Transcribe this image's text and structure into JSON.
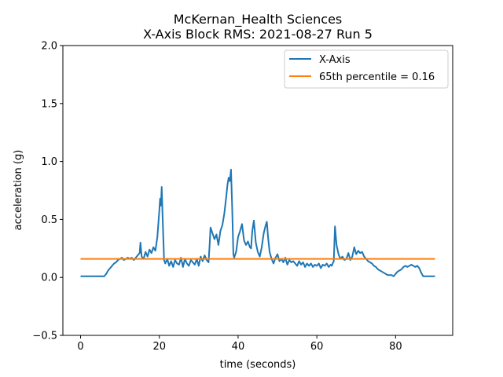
{
  "chart_data": {
    "type": "line",
    "title_line1": "McKernan_Health Sciences",
    "title_line2": "X-Axis Block RMS: 2021-08-27 Run 5",
    "xlabel": "time (seconds)",
    "ylabel": "acceleration (g)",
    "xlim": [
      -4.5,
      94.5
    ],
    "ylim": [
      -0.5,
      2.0
    ],
    "x_ticks": [
      0,
      20,
      40,
      60,
      80
    ],
    "y_ticks": [
      -0.5,
      0.0,
      0.5,
      1.0,
      1.5,
      2.0
    ],
    "x_tick_labels": [
      "0",
      "20",
      "40",
      "60",
      "80"
    ],
    "y_tick_labels": [
      "−0.5",
      "0.0",
      "0.5",
      "1.0",
      "1.5",
      "2.0"
    ],
    "legend_position": "top-right",
    "grid": false,
    "series": [
      {
        "name": "X-Axis",
        "color": "#1f77b4",
        "x": [
          0,
          1,
          2,
          3,
          4,
          5,
          6,
          6.5,
          7,
          7.5,
          8,
          8.5,
          9,
          9.5,
          10,
          10.5,
          11,
          11.5,
          12,
          12.5,
          13,
          13.5,
          14,
          14.5,
          15,
          15.2,
          15.5,
          16,
          16.5,
          17,
          17.5,
          18,
          18.5,
          19,
          19.5,
          20,
          20.2,
          20.4,
          20.6,
          20.8,
          21,
          21.2,
          21.5,
          22,
          22.5,
          23,
          23.5,
          24,
          24.5,
          25,
          25.5,
          26,
          26.5,
          27,
          27.5,
          28,
          28.5,
          29,
          29.5,
          30,
          30.5,
          31,
          31.5,
          32,
          32.5,
          32.8,
          33,
          33.5,
          34,
          34.5,
          35,
          35.5,
          36,
          36.5,
          37,
          37.3,
          37.6,
          37.9,
          38.2,
          38.5,
          38.8,
          39,
          39.5,
          40,
          40.5,
          41,
          41.5,
          42,
          42.5,
          43,
          43.3,
          43.6,
          44,
          44.5,
          45,
          45.5,
          46,
          46.5,
          47,
          47.3,
          47.6,
          48,
          48.5,
          49,
          49.5,
          50,
          50.5,
          51,
          51.5,
          52,
          52.5,
          53,
          53.5,
          54,
          54.5,
          55,
          55.5,
          56,
          56.5,
          57,
          57.5,
          58,
          58.5,
          59,
          59.5,
          60,
          60.5,
          61,
          61.5,
          62,
          62.5,
          63,
          63.5,
          63.8,
          64,
          64.3,
          64.6,
          65,
          65.5,
          66,
          66.5,
          67,
          67.5,
          68,
          68.5,
          69,
          69.5,
          70,
          70.5,
          71,
          71.5,
          72,
          72.5,
          73,
          73.5,
          74,
          74.5,
          75,
          75.5,
          76,
          76.5,
          77,
          77.5,
          78,
          78.5,
          79,
          79.5,
          80,
          80.5,
          81,
          81.5,
          82,
          82.5,
          83,
          83.5,
          84,
          84.5,
          85,
          85.5,
          86,
          86.5,
          87,
          88,
          89,
          90
        ],
        "y": [
          0.01,
          0.01,
          0.01,
          0.01,
          0.01,
          0.01,
          0.01,
          0.03,
          0.06,
          0.08,
          0.1,
          0.12,
          0.13,
          0.15,
          0.16,
          0.17,
          0.15,
          0.16,
          0.17,
          0.16,
          0.17,
          0.15,
          0.17,
          0.19,
          0.21,
          0.3,
          0.18,
          0.16,
          0.22,
          0.18,
          0.24,
          0.21,
          0.26,
          0.23,
          0.35,
          0.58,
          0.68,
          0.62,
          0.78,
          0.55,
          0.35,
          0.15,
          0.12,
          0.16,
          0.1,
          0.14,
          0.09,
          0.15,
          0.12,
          0.11,
          0.17,
          0.09,
          0.16,
          0.12,
          0.1,
          0.15,
          0.13,
          0.11,
          0.16,
          0.1,
          0.18,
          0.14,
          0.19,
          0.15,
          0.13,
          0.3,
          0.43,
          0.38,
          0.33,
          0.37,
          0.28,
          0.4,
          0.45,
          0.55,
          0.7,
          0.8,
          0.86,
          0.83,
          0.93,
          0.6,
          0.2,
          0.17,
          0.22,
          0.35,
          0.4,
          0.46,
          0.32,
          0.28,
          0.31,
          0.26,
          0.25,
          0.4,
          0.49,
          0.3,
          0.22,
          0.18,
          0.26,
          0.38,
          0.45,
          0.48,
          0.35,
          0.22,
          0.16,
          0.12,
          0.17,
          0.2,
          0.14,
          0.16,
          0.13,
          0.17,
          0.11,
          0.15,
          0.13,
          0.14,
          0.12,
          0.1,
          0.14,
          0.11,
          0.13,
          0.09,
          0.12,
          0.1,
          0.12,
          0.09,
          0.11,
          0.1,
          0.12,
          0.08,
          0.11,
          0.1,
          0.12,
          0.09,
          0.11,
          0.1,
          0.12,
          0.14,
          0.44,
          0.28,
          0.2,
          0.16,
          0.18,
          0.15,
          0.16,
          0.21,
          0.15,
          0.18,
          0.26,
          0.2,
          0.23,
          0.21,
          0.22,
          0.18,
          0.16,
          0.14,
          0.13,
          0.12,
          0.1,
          0.09,
          0.07,
          0.06,
          0.05,
          0.04,
          0.03,
          0.02,
          0.02,
          0.02,
          0.01,
          0.03,
          0.05,
          0.06,
          0.07,
          0.09,
          0.1,
          0.09,
          0.1,
          0.11,
          0.1,
          0.09,
          0.1,
          0.08,
          0.04,
          0.01,
          0.01,
          0.01,
          0.01
        ]
      },
      {
        "name": "65th percentile = 0.16",
        "color": "#ff7f0e",
        "x": [
          0,
          90
        ],
        "y": [
          0.16,
          0.16
        ]
      }
    ]
  }
}
